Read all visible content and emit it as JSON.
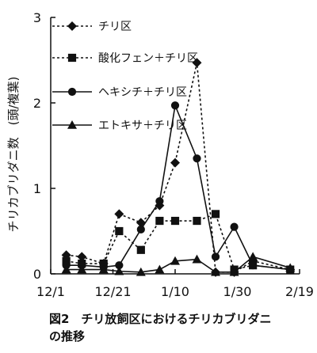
{
  "chart_data": {
    "type": "line",
    "title": "",
    "caption_lines": [
      "図2　チリ放飼区におけるチリカブリダニ",
      "の推移"
    ],
    "ylabel": "チリカブリダニ数　(頭/複葉)",
    "xlabel": "",
    "xlim": [
      "12/1",
      "2/19"
    ],
    "ylim": [
      0,
      3
    ],
    "x_ticks": [
      "12/1",
      "12/21",
      "1/10",
      "1/30",
      "2/19"
    ],
    "y_ticks": [
      "0",
      "1",
      "2",
      "3"
    ],
    "grid": false,
    "legend_position": "top-left",
    "series": [
      {
        "name": "チリ区",
        "marker": "diamond",
        "line": "dotted",
        "color": "#111111",
        "x": [
          "12/6",
          "12/11",
          "12/18",
          "12/23",
          "12/30",
          "1/5",
          "1/10",
          "1/17",
          "1/23",
          "1/29",
          "2/4",
          "2/16"
        ],
        "y": [
          0.22,
          0.2,
          0.12,
          0.7,
          0.6,
          0.8,
          1.3,
          2.47,
          0.02,
          0.02,
          0.15,
          0.05
        ]
      },
      {
        "name": "酸化フェン＋チリ区",
        "marker": "square",
        "line": "dotted",
        "color": "#111111",
        "x": [
          "12/6",
          "12/11",
          "12/18",
          "12/23",
          "12/30",
          "1/5",
          "1/10",
          "1/17",
          "1/23",
          "1/29",
          "2/4",
          "2/16"
        ],
        "y": [
          0.15,
          0.12,
          0.12,
          0.5,
          0.28,
          0.62,
          0.62,
          0.62,
          0.7,
          0.05,
          0.1,
          0.05
        ]
      },
      {
        "name": "ヘキシチ＋チリ区",
        "marker": "circle",
        "line": "solid",
        "color": "#111111",
        "x": [
          "12/6",
          "12/11",
          "12/18",
          "12/23",
          "12/30",
          "1/5",
          "1/10",
          "1/17",
          "1/23",
          "1/29",
          "2/4",
          "2/16"
        ],
        "y": [
          0.1,
          0.1,
          0.08,
          0.1,
          0.52,
          0.85,
          1.97,
          1.35,
          0.2,
          0.55,
          0.1,
          0.05
        ]
      },
      {
        "name": "エトキサ＋チリ区",
        "marker": "triangle",
        "line": "solid",
        "color": "#111111",
        "x": [
          "12/6",
          "12/11",
          "12/18",
          "12/23",
          "12/30",
          "1/5",
          "1/10",
          "1/17",
          "1/23",
          "1/29",
          "2/4",
          "2/16"
        ],
        "y": [
          0.05,
          0.05,
          0.05,
          0.03,
          0.02,
          0.05,
          0.15,
          0.17,
          0.02,
          0.02,
          0.2,
          0.07
        ]
      }
    ]
  }
}
